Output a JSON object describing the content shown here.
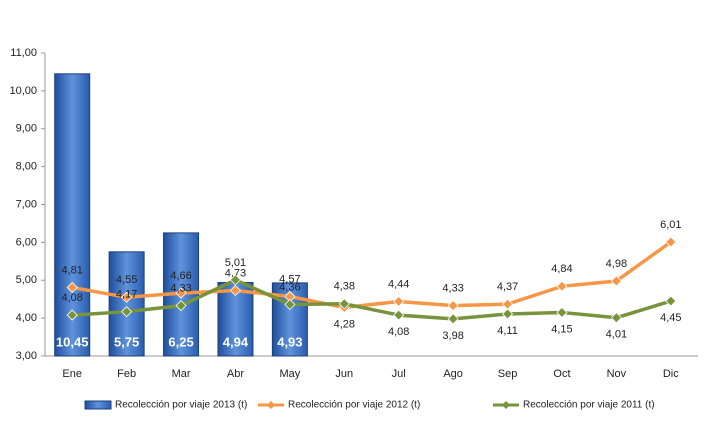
{
  "chart_data": {
    "type": "bar",
    "categories": [
      "Ene",
      "Feb",
      "Mar",
      "Abr",
      "May",
      "Jun",
      "Jul",
      "Ago",
      "Sep",
      "Oct",
      "Nov",
      "Dic"
    ],
    "series": [
      {
        "name": "Recolección por viaje 2013 (t)",
        "type": "bar",
        "color": "#3a6fc4",
        "values": [
          10.45,
          5.75,
          6.25,
          4.94,
          4.93,
          null,
          null,
          null,
          null,
          null,
          null,
          null
        ],
        "value_labels": [
          "10,45",
          "5,75",
          "6,25",
          "4,94",
          "4,93",
          null,
          null,
          null,
          null,
          null,
          null,
          null
        ]
      },
      {
        "name": "Recolección por viaje 2012 (t)",
        "type": "line",
        "color": "#f79646",
        "values": [
          4.81,
          4.55,
          4.66,
          4.73,
          4.57,
          4.28,
          4.44,
          4.33,
          4.37,
          4.84,
          4.98,
          6.01
        ],
        "value_labels": [
          "4,81",
          "4,55",
          "4,66",
          "4,73",
          "4,57",
          "4,28",
          "4,44",
          "4,33",
          "4,37",
          "4,84",
          "4,98",
          "6,01"
        ]
      },
      {
        "name": "Recolección por viaje 2011 (t)",
        "type": "line",
        "color": "#77933c",
        "values": [
          4.08,
          4.17,
          4.33,
          5.01,
          4.36,
          4.38,
          4.08,
          3.98,
          4.11,
          4.15,
          4.01,
          4.45
        ],
        "value_labels": [
          "4,08",
          "4,17",
          "4,33",
          "5,01",
          "4,36",
          "4,38",
          "4,08",
          "3,98",
          "4,11",
          "4,15",
          "4,01",
          "4,45"
        ]
      }
    ],
    "ylim": [
      3,
      11
    ],
    "yticks": [
      {
        "value": 3,
        "label": "3,00"
      },
      {
        "value": 4,
        "label": "4,00"
      },
      {
        "value": 5,
        "label": "5,00"
      },
      {
        "value": 6,
        "label": "6,00"
      },
      {
        "value": 7,
        "label": "7,00"
      },
      {
        "value": 8,
        "label": "8,00"
      },
      {
        "value": 9,
        "label": "9,00"
      },
      {
        "value": 10,
        "label": "10,00"
      },
      {
        "value": 11,
        "label": "11,00"
      }
    ],
    "legend": "bottom"
  }
}
